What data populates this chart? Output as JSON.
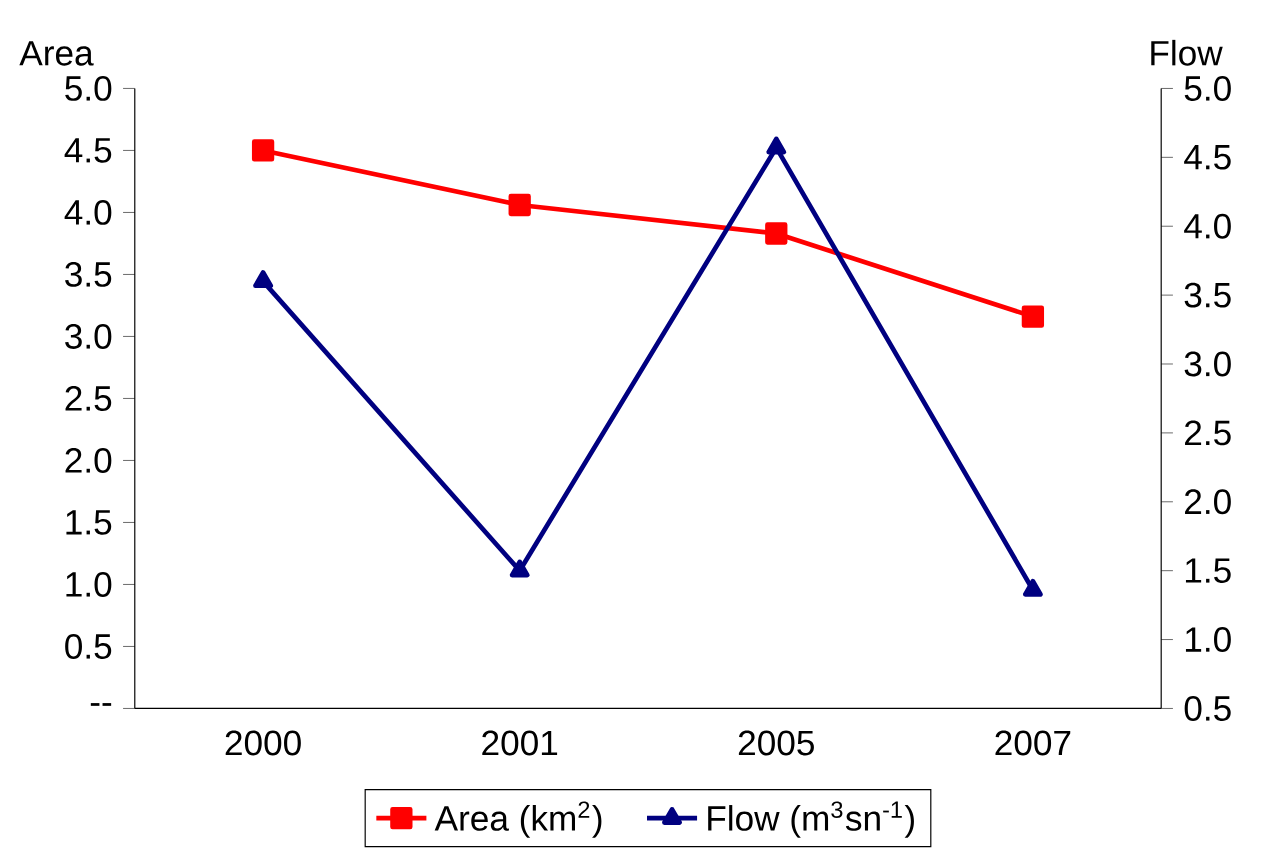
{
  "chart_data": {
    "type": "line",
    "categories": [
      "2000",
      "2001",
      "2005",
      "2007"
    ],
    "ylabel": "Area",
    "y2label": "Flow",
    "ylim": [
      0,
      5
    ],
    "yticks": [
      {
        "value": 0,
        "label": "--"
      },
      {
        "value": 0.5,
        "label": "0.5"
      },
      {
        "value": 1,
        "label": "1.0"
      },
      {
        "value": 1.5,
        "label": "1.5"
      },
      {
        "value": 2,
        "label": "2.0"
      },
      {
        "value": 2.5,
        "label": "2.5"
      },
      {
        "value": 3,
        "label": "3.0"
      },
      {
        "value": 3.5,
        "label": "3.5"
      },
      {
        "value": 4,
        "label": "4.0"
      },
      {
        "value": 4.5,
        "label": "4.5"
      },
      {
        "value": 5,
        "label": "5.0"
      }
    ],
    "y2lim": [
      0.5,
      5
    ],
    "y2ticks": [
      {
        "value": 0.5,
        "label": "0.5"
      },
      {
        "value": 1,
        "label": "1.0"
      },
      {
        "value": 1.5,
        "label": "1.5"
      },
      {
        "value": 2,
        "label": "2.0"
      },
      {
        "value": 2.5,
        "label": "2.5"
      },
      {
        "value": 3,
        "label": "3.0"
      },
      {
        "value": 3.5,
        "label": "3.5"
      },
      {
        "value": 4,
        "label": "4.0"
      },
      {
        "value": 4.5,
        "label": "4.5"
      },
      {
        "value": 5,
        "label": "5.0"
      }
    ],
    "legend": "bottom",
    "series": [
      {
        "name": "Area (km$^{2}$)",
        "color": "#ff0000",
        "marker": "square",
        "values": [
          4.5,
          4.06,
          3.83,
          3.16
        ]
      },
      {
        "name": "Flow (m$^{3}$sn$^{-1}$)",
        "color": "#000080",
        "marker": "triangle",
        "axis": "y2",
        "values": [
          3.6,
          1.5,
          4.57,
          1.36
        ]
      }
    ]
  }
}
